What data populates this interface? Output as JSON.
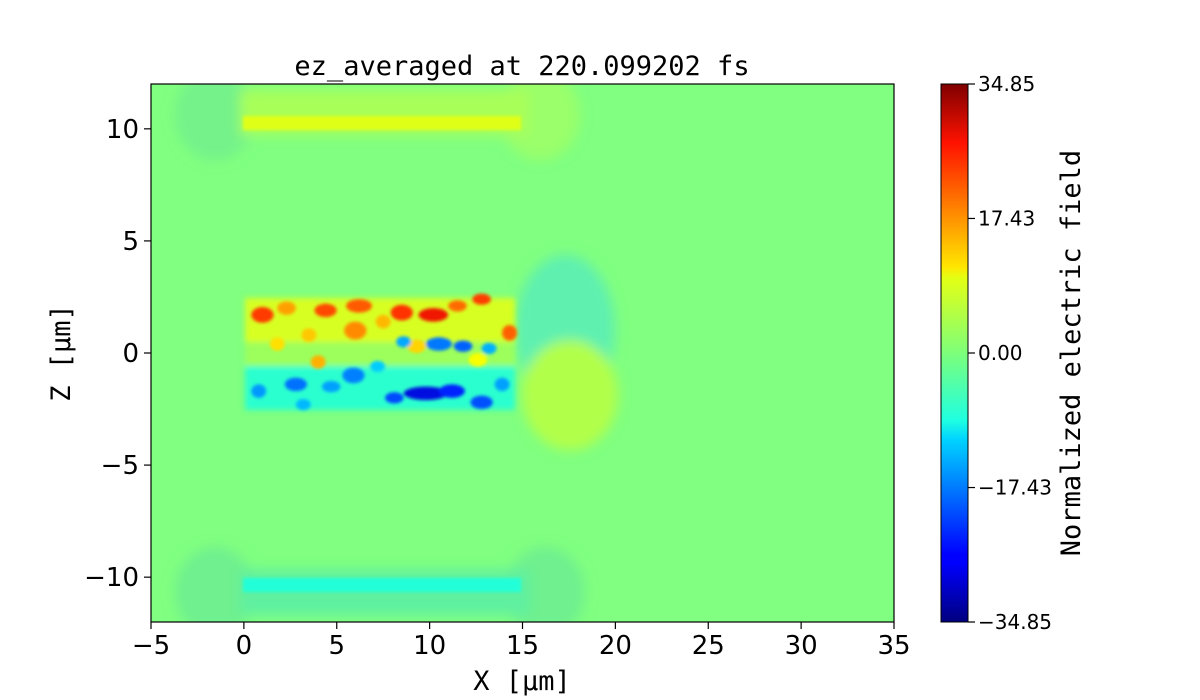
{
  "chart_data": {
    "type": "heatmap",
    "title": "ez_averaged at 220.099202 fs",
    "xlabel": "X [μm]",
    "ylabel": "Z [μm]",
    "xlim": [
      -5,
      35
    ],
    "ylim": [
      -12,
      12
    ],
    "x_ticks": [
      {
        "value": -5,
        "label": "−5"
      },
      {
        "value": 0,
        "label": "0"
      },
      {
        "value": 5,
        "label": "5"
      },
      {
        "value": 10,
        "label": "10"
      },
      {
        "value": 15,
        "label": "15"
      },
      {
        "value": 20,
        "label": "20"
      },
      {
        "value": 25,
        "label": "25"
      },
      {
        "value": 30,
        "label": "30"
      },
      {
        "value": 35,
        "label": "35"
      }
    ],
    "y_ticks": [
      {
        "value": 10,
        "label": "10"
      },
      {
        "value": 5,
        "label": "5"
      },
      {
        "value": 0,
        "label": "0"
      },
      {
        "value": -5,
        "label": "−5"
      },
      {
        "value": -10,
        "label": "−10"
      }
    ],
    "colorbar": {
      "label": "Normalized electric field",
      "colormap": "jet",
      "vmin": -34.85,
      "vmax": 34.85,
      "ticks": [
        {
          "value": 34.85,
          "label": "34.85"
        },
        {
          "value": 17.43,
          "label": "17.43"
        },
        {
          "value": 0.0,
          "label": "0.00"
        },
        {
          "value": -17.43,
          "label": "−17.43"
        },
        {
          "value": -34.85,
          "label": "−34.85"
        }
      ]
    },
    "field_features": [
      {
        "name": "top electrode",
        "x": [
          0,
          15
        ],
        "z": 10,
        "value": 8
      },
      {
        "name": "bottom electrode",
        "x": [
          0,
          15
        ],
        "z": -10,
        "value": -8
      },
      {
        "name": "positive field band",
        "x": [
          0,
          14.5
        ],
        "z": [
          0.3,
          2.7
        ],
        "peak": 26
      },
      {
        "name": "negative field band",
        "x": [
          0,
          14.5
        ],
        "z": [
          -2.6,
          -0.2
        ],
        "peak": -33
      },
      {
        "name": "trailing wake",
        "x": [
          15,
          21
        ],
        "z": [
          -4.5,
          4.5
        ],
        "peak": 4
      }
    ]
  }
}
